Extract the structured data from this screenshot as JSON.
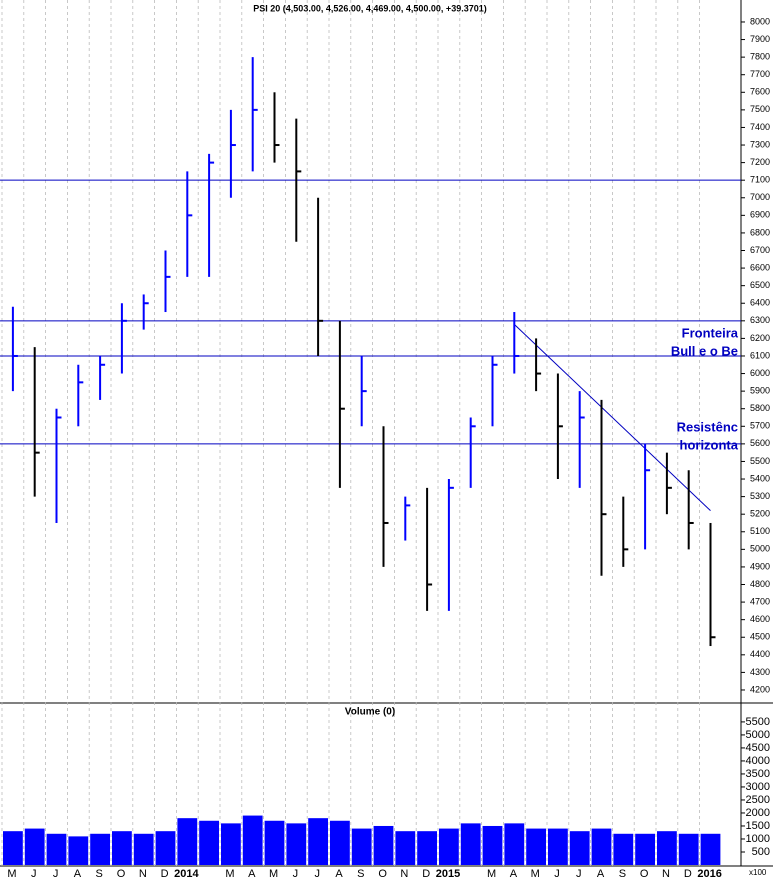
{
  "chart_data": {
    "type": "ohlc",
    "title": "PSI 20 (4,503.00, 4,526.00, 4,469.00, 4,500.00, +39.3701)",
    "categories": [
      "M",
      "J",
      "J",
      "A",
      "S",
      "O",
      "N",
      "D",
      "2014",
      null,
      "M",
      "A",
      "M",
      "J",
      "J",
      "A",
      "S",
      "O",
      "N",
      "D",
      "2015",
      null,
      "M",
      "A",
      "M",
      "J",
      "J",
      "A",
      "S",
      "O",
      "N",
      "D",
      "2016"
    ],
    "high": [
      6380,
      6150,
      5800,
      6050,
      6100,
      6400,
      6450,
      6700,
      7150,
      7250,
      7500,
      7800,
      7600,
      7450,
      7000,
      6300,
      6100,
      5700,
      5300,
      5350,
      5400,
      5750,
      6100,
      6350,
      6200,
      6000,
      5900,
      5850,
      5300,
      5600,
      5550,
      5450,
      5150
    ],
    "low": [
      5900,
      5300,
      5150,
      5700,
      5850,
      6000,
      6250,
      6350,
      6550,
      6550,
      7000,
      7150,
      7200,
      6750,
      6100,
      5350,
      5700,
      4900,
      5050,
      4650,
      4650,
      5350,
      5700,
      6000,
      5900,
      5400,
      5350,
      4850,
      4900,
      5000,
      5200,
      5000,
      4450
    ],
    "close": [
      6100,
      5550,
      5750,
      5950,
      6050,
      6300,
      6400,
      6550,
      6900,
      7200,
      7300,
      7500,
      7300,
      7150,
      6300,
      5800,
      5900,
      5150,
      5250,
      4800,
      5350,
      5700,
      6050,
      6100,
      6000,
      5700,
      5750,
      5200,
      5000,
      5450,
      5350,
      5150,
      4500
    ],
    "up_color": "#0000ff",
    "down_color": "#000000",
    "ylim": [
      4143,
      8125
    ],
    "yticks": [
      4200,
      4300,
      4400,
      4500,
      4600,
      4700,
      4800,
      4900,
      5000,
      5100,
      5200,
      5300,
      5400,
      5500,
      5600,
      5700,
      5800,
      5900,
      6000,
      6100,
      6200,
      6300,
      6400,
      6500,
      6600,
      6700,
      6800,
      6900,
      7000,
      7100,
      7200,
      7300,
      7400,
      7500,
      7600,
      7700,
      7800,
      7900,
      8000
    ],
    "levels": [
      7100,
      6300,
      6100,
      5600
    ],
    "level_color": "#0000c0",
    "trendline": {
      "from": {
        "category": 23,
        "value": 6280
      },
      "to": {
        "category": 32,
        "value": 5220
      }
    },
    "annotations": [
      {
        "lines": [
          "Fronteira",
          "Bull e o Be"
        ]
      },
      {
        "lines": [
          "Resistênc",
          "horizonta"
        ]
      }
    ],
    "volume": {
      "title": "Volume (0)",
      "unit_label": "x100",
      "values": [
        1300,
        1400,
        1200,
        1100,
        1200,
        1300,
        1200,
        1300,
        1800,
        1700,
        1600,
        1900,
        1700,
        1600,
        1800,
        1700,
        1400,
        1500,
        1300,
        1300,
        1400,
        1600,
        1500,
        1600,
        1400,
        1400,
        1300,
        1400,
        1200,
        1200,
        1300,
        1200,
        1200
      ],
      "color": "#0000ff",
      "ylim": [
        0,
        6150
      ],
      "yticks": [
        500,
        1000,
        1500,
        2000,
        2500,
        3000,
        3500,
        4000,
        4500,
        5000,
        5500
      ]
    },
    "grid": true
  }
}
